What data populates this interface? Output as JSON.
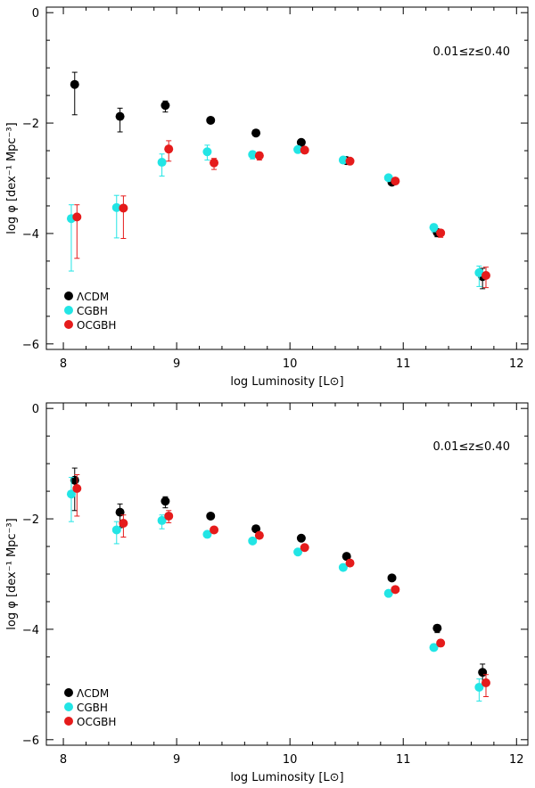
{
  "chart_data": [
    {
      "type": "scatter",
      "title": "",
      "annotation": "0.01≤z≤0.40",
      "xlabel": "log Luminosity [L⊙]",
      "ylabel": "log φ [dex⁻¹ Mpc⁻³]",
      "xlim": [
        7.85,
        12.1
      ],
      "ylim": [
        -6.1,
        0.1
      ],
      "xticks": [
        8,
        9,
        10,
        11,
        12
      ],
      "xticklabels": [
        "8",
        "9",
        "10",
        "11",
        "12"
      ],
      "yticks": [
        0,
        -2,
        -4,
        -6
      ],
      "yticklabels": [
        "0",
        "−2",
        "−4",
        "−6"
      ],
      "legend": "bottom-left",
      "series": [
        {
          "name": "ΛCDM",
          "color": "#000000",
          "x": [
            8.1,
            8.5,
            8.9,
            9.3,
            9.7,
            10.1,
            10.5,
            10.9,
            11.3,
            11.7
          ],
          "y": [
            -1.3,
            -1.88,
            -1.68,
            -1.95,
            -2.18,
            -2.35,
            -2.68,
            -3.07,
            -3.98,
            -4.78
          ],
          "err_lo": [
            0.55,
            0.28,
            0.12,
            0.05,
            0.05,
            0.05,
            0.05,
            0.05,
            0.08,
            0.22
          ],
          "err_hi": [
            0.22,
            0.15,
            0.08,
            0.05,
            0.05,
            0.05,
            0.05,
            0.05,
            0.06,
            0.15
          ]
        },
        {
          "name": "CGBH",
          "color": "#22e5e5",
          "x": [
            8.07,
            8.47,
            8.87,
            9.27,
            9.67,
            10.07,
            10.47,
            10.87,
            11.27,
            11.67
          ],
          "y": [
            -3.73,
            -3.53,
            -2.71,
            -2.52,
            -2.57,
            -2.48,
            -2.67,
            -2.99,
            -3.89,
            -4.71
          ],
          "err_lo": [
            0.95,
            0.55,
            0.25,
            0.15,
            0.08,
            0.05,
            0.05,
            0.05,
            0.08,
            0.25
          ],
          "err_hi": [
            0.25,
            0.22,
            0.15,
            0.12,
            0.06,
            0.05,
            0.05,
            0.05,
            0.06,
            0.12
          ]
        },
        {
          "name": "OCGBH",
          "color": "#e51b1b",
          "x": [
            8.12,
            8.53,
            8.93,
            9.33,
            9.73,
            10.13,
            10.53,
            10.93,
            11.33,
            11.73
          ],
          "y": [
            -3.7,
            -3.54,
            -2.47,
            -2.72,
            -2.59,
            -2.49,
            -2.69,
            -3.05,
            -3.99,
            -4.76
          ],
          "err_lo": [
            0.75,
            0.55,
            0.22,
            0.12,
            0.08,
            0.05,
            0.05,
            0.05,
            0.08,
            0.22
          ],
          "err_hi": [
            0.22,
            0.22,
            0.15,
            0.08,
            0.06,
            0.05,
            0.05,
            0.05,
            0.06,
            0.15
          ]
        }
      ]
    },
    {
      "type": "scatter",
      "title": "",
      "annotation": "0.01≤z≤0.40",
      "xlabel": "log Luminosity [L⊙]",
      "ylabel": "log φ [dex⁻¹ Mpc⁻³]",
      "xlim": [
        7.85,
        12.1
      ],
      "ylim": [
        -6.1,
        0.1
      ],
      "xticks": [
        8,
        9,
        10,
        11,
        12
      ],
      "xticklabels": [
        "8",
        "9",
        "10",
        "11",
        "12"
      ],
      "yticks": [
        0,
        -2,
        -4,
        -6
      ],
      "yticklabels": [
        "0",
        "−2",
        "−4",
        "−6"
      ],
      "legend": "bottom-left",
      "series": [
        {
          "name": "ΛCDM",
          "color": "#000000",
          "x": [
            8.1,
            8.5,
            8.9,
            9.3,
            9.7,
            10.1,
            10.5,
            10.9,
            11.3,
            11.7
          ],
          "y": [
            -1.3,
            -1.88,
            -1.68,
            -1.95,
            -2.18,
            -2.35,
            -2.68,
            -3.07,
            -3.98,
            -4.78
          ],
          "err_lo": [
            0.55,
            0.28,
            0.12,
            0.05,
            0.05,
            0.05,
            0.05,
            0.05,
            0.08,
            0.22
          ],
          "err_hi": [
            0.22,
            0.15,
            0.08,
            0.05,
            0.05,
            0.05,
            0.05,
            0.05,
            0.06,
            0.15
          ]
        },
        {
          "name": "CGBH",
          "color": "#22e5e5",
          "x": [
            8.07,
            8.47,
            8.87,
            9.27,
            9.67,
            10.07,
            10.47,
            10.87,
            11.27,
            11.67
          ],
          "y": [
            -1.55,
            -2.2,
            -2.03,
            -2.28,
            -2.4,
            -2.6,
            -2.88,
            -3.35,
            -4.33,
            -5.05
          ],
          "err_lo": [
            0.5,
            0.25,
            0.15,
            0.05,
            0.05,
            0.05,
            0.05,
            0.05,
            0.06,
            0.25
          ],
          "err_hi": [
            0.3,
            0.15,
            0.1,
            0.05,
            0.05,
            0.05,
            0.05,
            0.05,
            0.06,
            0.15
          ]
        },
        {
          "name": "OCGBH",
          "color": "#e51b1b",
          "x": [
            8.12,
            8.53,
            8.93,
            9.33,
            9.73,
            10.13,
            10.53,
            10.93,
            11.33,
            11.73
          ],
          "y": [
            -1.45,
            -2.08,
            -1.95,
            -2.2,
            -2.3,
            -2.52,
            -2.8,
            -3.28,
            -4.25,
            -4.97
          ],
          "err_lo": [
            0.5,
            0.25,
            0.12,
            0.05,
            0.05,
            0.05,
            0.05,
            0.05,
            0.06,
            0.25
          ],
          "err_hi": [
            0.25,
            0.15,
            0.1,
            0.05,
            0.05,
            0.05,
            0.05,
            0.05,
            0.06,
            0.15
          ]
        }
      ]
    }
  ]
}
